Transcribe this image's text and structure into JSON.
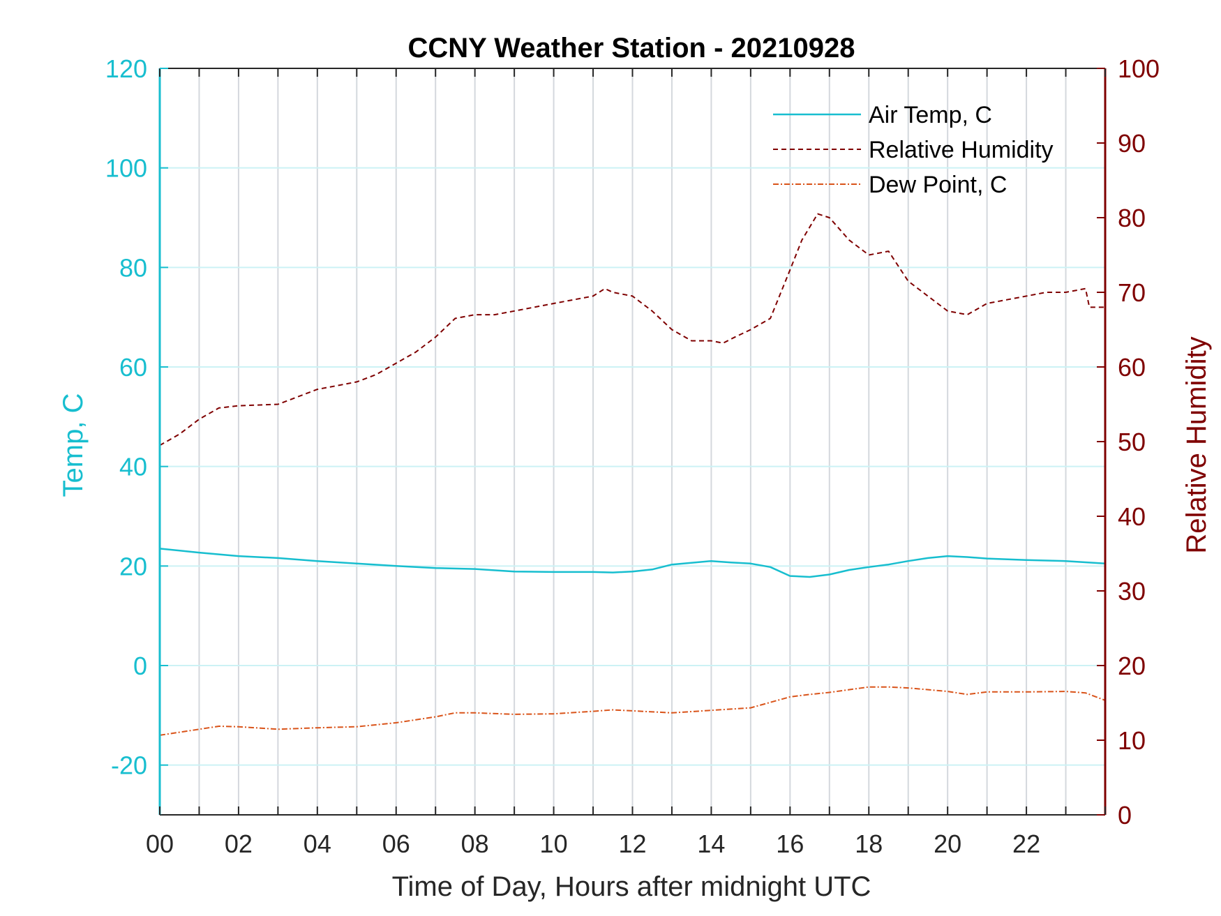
{
  "chart_data": {
    "type": "line",
    "title": "CCNY Weather Station - 20210928",
    "xlabel": "Time of Day, Hours after midnight UTC",
    "ylabel_left": "Temp, C",
    "ylabel_right": "Relative Humidity",
    "xlim": [
      0,
      24
    ],
    "ylim_left": [
      -30,
      120
    ],
    "ylim_right": [
      0,
      100
    ],
    "x_ticks": [
      0,
      2,
      4,
      6,
      8,
      10,
      12,
      14,
      16,
      18,
      20,
      22
    ],
    "x_tick_labels": [
      "00",
      "02",
      "04",
      "06",
      "08",
      "10",
      "12",
      "14",
      "16",
      "18",
      "20",
      "22"
    ],
    "y_left_ticks": [
      -20,
      0,
      20,
      40,
      60,
      80,
      100,
      120
    ],
    "y_right_ticks": [
      0,
      10,
      20,
      30,
      40,
      50,
      60,
      70,
      80,
      90,
      100
    ],
    "grid": true,
    "legend_position": "top-right",
    "colors": {
      "air_temp": "#17becf",
      "humidity": "#7f0000",
      "dew_point": "#d95319",
      "grid_vertical": "#d4d8dd",
      "grid_horizontal": "#ccf2f5"
    },
    "series": [
      {
        "name": "Air Temp, C",
        "axis": "left",
        "style": "solid",
        "x": [
          0,
          1,
          2,
          3,
          4,
          5,
          6,
          7,
          8,
          9,
          10,
          11,
          11.5,
          12,
          12.5,
          13,
          14,
          14.5,
          15,
          15.5,
          16,
          16.5,
          17,
          17.5,
          18,
          18.5,
          19,
          19.5,
          20,
          20.5,
          21,
          22,
          23,
          24
        ],
        "y": [
          23.5,
          22.7,
          22.0,
          21.6,
          21.0,
          20.5,
          20.0,
          19.6,
          19.4,
          18.9,
          18.8,
          18.8,
          18.7,
          18.9,
          19.3,
          20.3,
          21.0,
          20.7,
          20.5,
          19.8,
          18.0,
          17.8,
          18.3,
          19.2,
          19.8,
          20.3,
          21.0,
          21.6,
          22.0,
          21.8,
          21.5,
          21.2,
          21.0,
          20.5
        ]
      },
      {
        "name": "Relative Humidity",
        "axis": "right",
        "style": "dashed",
        "x": [
          0,
          0.5,
          1,
          1.5,
          2,
          3,
          3.5,
          4,
          4.5,
          5,
          5.5,
          6,
          6.5,
          7,
          7.5,
          8,
          8.5,
          9,
          9.5,
          10,
          10.5,
          11,
          11.3,
          11.5,
          12,
          12.5,
          13,
          13.5,
          14,
          14.3,
          14.6,
          15,
          15.5,
          16,
          16.3,
          16.7,
          17,
          17.5,
          18,
          18.5,
          19,
          19.5,
          20,
          20.5,
          21,
          21.5,
          22,
          22.5,
          23,
          23.5,
          23.6,
          24
        ],
        "y": [
          49.5,
          51,
          53,
          54.5,
          54.8,
          55,
          56,
          57,
          57.5,
          58,
          59,
          60.5,
          62,
          64,
          66.5,
          67,
          67,
          67.5,
          68,
          68.5,
          69,
          69.5,
          70.5,
          70,
          69.5,
          67.5,
          65,
          63.5,
          63.5,
          63.2,
          64,
          65,
          66.5,
          73,
          77,
          80.5,
          80,
          77,
          75,
          75.5,
          71.5,
          69.5,
          67.5,
          67,
          68.5,
          69,
          69.5,
          70,
          70,
          70.5,
          68,
          68
        ]
      },
      {
        "name": "Dew Point, C",
        "axis": "left",
        "style": "dashdot",
        "x": [
          0,
          1,
          1.5,
          2,
          3,
          4,
          5,
          6,
          7,
          7.5,
          8,
          9,
          10,
          11,
          11.5,
          12,
          13,
          14,
          15,
          16,
          16.5,
          17,
          18,
          18.5,
          19,
          20,
          20.5,
          21,
          22,
          23,
          23.5,
          24
        ],
        "y": [
          -14,
          -12.8,
          -12.2,
          -12.3,
          -12.8,
          -12.5,
          -12.3,
          -11.5,
          -10.3,
          -9.5,
          -9.5,
          -9.8,
          -9.7,
          -9.2,
          -8.9,
          -9.1,
          -9.5,
          -9.0,
          -8.5,
          -6.3,
          -5.8,
          -5.4,
          -4.3,
          -4.3,
          -4.5,
          -5.2,
          -5.8,
          -5.3,
          -5.3,
          -5.2,
          -5.5,
          -7.0
        ]
      }
    ]
  }
}
